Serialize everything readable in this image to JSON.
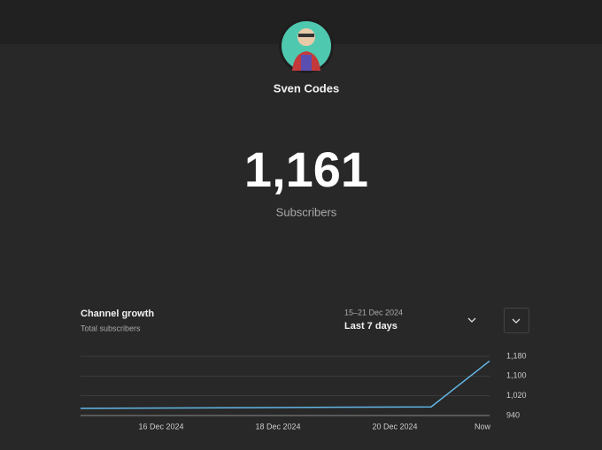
{
  "header": {
    "channel_name": "Sven Codes",
    "count": "1,161",
    "count_label": "Subscribers"
  },
  "panel": {
    "title": "Channel growth",
    "subtitle": "Total subscribers",
    "range_dates": "15–21 Dec 2024",
    "range_name": "Last 7 days"
  },
  "chart_data": {
    "type": "line",
    "categories": [
      null,
      "16 Dec 2024",
      null,
      "18 Dec 2024",
      null,
      "20 Dec 2024",
      null,
      "Now"
    ],
    "values": [
      969,
      970,
      971,
      972,
      973,
      974,
      975,
      1161
    ],
    "color": "#62b7e6",
    "ylim": [
      940,
      1180
    ],
    "yticks": [
      940,
      {
        "value": 1020,
        "label": "1,020"
      },
      {
        "value": 1100,
        "label": "1,100"
      },
      {
        "value": 1180,
        "label": "1,180"
      }
    ],
    "grid": true
  }
}
